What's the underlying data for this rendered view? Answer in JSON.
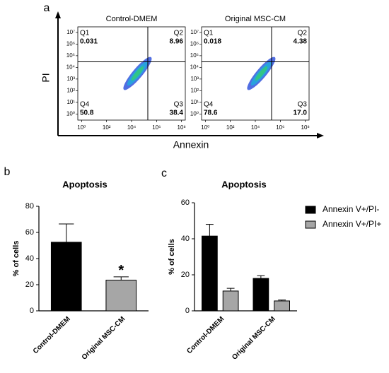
{
  "panel_labels": [
    "a",
    "b",
    "c"
  ],
  "flow_axes": {
    "x_label": "Annexin",
    "y_label": "PI"
  },
  "chart_data": [
    {
      "type": "flow",
      "title": "Control-DMEM",
      "quadrants": [
        "Q1",
        "Q2",
        "Q3",
        "Q4"
      ],
      "values": [
        0.031,
        8.96,
        38.4,
        50.8
      ],
      "xscale": "log",
      "yscale": "log",
      "xlim": [
        0.5,
        200000000
      ],
      "ylim": [
        0.3,
        30000000
      ],
      "xticks": [
        {
          "value": 1,
          "label": "10⁰"
        },
        {
          "value": 100,
          "label": "10²"
        },
        {
          "value": 10000,
          "label": "10⁴"
        },
        {
          "value": 1000000,
          "label": "10⁶"
        },
        {
          "value": 100000000,
          "label": "10⁸"
        }
      ],
      "yticks": [
        {
          "value": 1,
          "label": "10⁰"
        },
        {
          "value": 10,
          "label": "10¹"
        },
        {
          "value": 100,
          "label": "10²"
        },
        {
          "value": 1000,
          "label": "10³"
        },
        {
          "value": 10000,
          "label": "10⁴"
        },
        {
          "value": 100000,
          "label": "10⁵"
        },
        {
          "value": 1000000,
          "label": "10⁶"
        },
        {
          "value": 10000000,
          "label": "10⁷"
        }
      ],
      "gate_x": 200000,
      "gate_y": 30000
    },
    {
      "type": "flow",
      "title": "Original MSC-CM",
      "quadrants": [
        "Q1",
        "Q2",
        "Q3",
        "Q4"
      ],
      "values": [
        0.018,
        4.38,
        17.0,
        78.6
      ],
      "value_labels": [
        "0.018",
        "4.38",
        "17.0",
        "78.6"
      ],
      "xscale": "log",
      "yscale": "log",
      "xlim": [
        0.5,
        200000000
      ],
      "ylim": [
        0.3,
        30000000
      ],
      "xticks": [
        {
          "value": 1,
          "label": "10⁰"
        },
        {
          "value": 100,
          "label": "10²"
        },
        {
          "value": 10000,
          "label": "10⁴"
        },
        {
          "value": 1000000,
          "label": "10⁶"
        },
        {
          "value": 100000000,
          "label": "10⁸"
        }
      ],
      "yticks": [
        {
          "value": 1,
          "label": "10⁰"
        },
        {
          "value": 10,
          "label": "10¹"
        },
        {
          "value": 100,
          "label": "10²"
        },
        {
          "value": 1000,
          "label": "10³"
        },
        {
          "value": 10000,
          "label": "10⁴"
        },
        {
          "value": 100000,
          "label": "10⁵"
        },
        {
          "value": 1000000,
          "label": "10⁶"
        },
        {
          "value": 10000000,
          "label": "10⁷"
        }
      ],
      "gate_x": 200000,
      "gate_y": 30000
    },
    {
      "type": "bar",
      "title": "Apoptosis",
      "y_label": "% of cells",
      "categories": [
        "Control-DMEM",
        "Original MSC-CM"
      ],
      "values": [
        52.5,
        23.5
      ],
      "errors": [
        14,
        2.5
      ],
      "colors": [
        "#000000",
        "#a6a6a6"
      ],
      "annotations": [
        {
          "text": "*",
          "category": "Original MSC-CM"
        }
      ],
      "ylim": [
        0,
        80
      ],
      "yticks": [
        0,
        20,
        40,
        60,
        80
      ]
    },
    {
      "type": "grouped_bar",
      "title": "Apoptosis",
      "y_label": "% of cells",
      "categories": [
        "Control-DMEM",
        "Original MSC-CM"
      ],
      "series": [
        {
          "name": "Annexin V+/PI-",
          "color": "#000000",
          "values": [
            41.5,
            18
          ],
          "errors": [
            6.5,
            1.5
          ]
        },
        {
          "name": "Annexin V+/PI+",
          "color": "#a6a6a6",
          "values": [
            11,
            5.5
          ],
          "errors": [
            1.5,
            0.5
          ]
        }
      ],
      "legend": "right",
      "ylim": [
        0,
        60
      ],
      "yticks": [
        0,
        20,
        40,
        60
      ]
    }
  ]
}
